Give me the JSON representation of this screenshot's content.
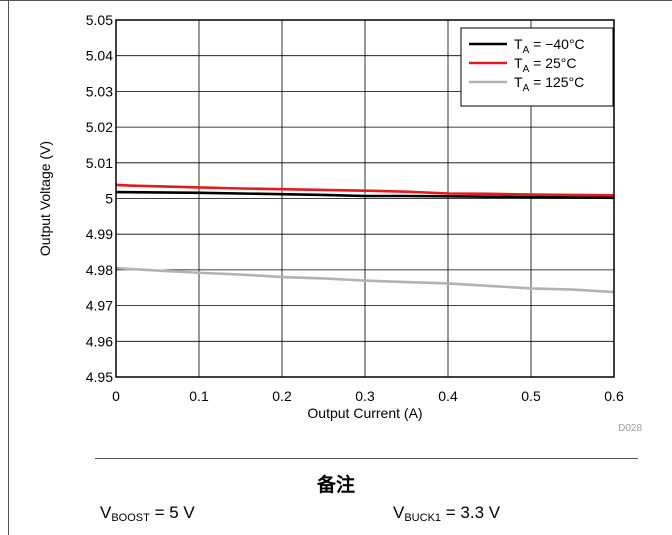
{
  "chart_data": {
    "type": "line",
    "title": "",
    "xlabel": "Output Current (A)",
    "ylabel": "Output Voltage (V)",
    "xlim": [
      0,
      0.6
    ],
    "ylim": [
      4.95,
      5.05
    ],
    "xticks": [
      "0",
      "0.1",
      "0.2",
      "0.3",
      "0.4",
      "0.5",
      "0.6"
    ],
    "xtick_values": [
      0,
      0.1,
      0.2,
      0.3,
      0.4,
      0.5,
      0.6
    ],
    "yticks": [
      "4.95",
      "4.96",
      "4.97",
      "4.98",
      "4.99",
      "5",
      "5.01",
      "5.02",
      "5.03",
      "5.04",
      "5.05"
    ],
    "ytick_values": [
      4.95,
      4.96,
      4.97,
      4.98,
      4.99,
      5.0,
      5.01,
      5.02,
      5.03,
      5.04,
      5.05
    ],
    "grid": true,
    "legend_position": "top-right",
    "figure_code": "D028",
    "series": [
      {
        "name_main": "T",
        "name_sub": "A",
        "name_rest": " = −40°C",
        "color": "#000000",
        "x": [
          0,
          0.05,
          0.1,
          0.15,
          0.2,
          0.25,
          0.3,
          0.35,
          0.4,
          0.45,
          0.5,
          0.55,
          0.6
        ],
        "y": [
          5.0018,
          5.0017,
          5.0016,
          5.0014,
          5.0012,
          5.001,
          5.0007,
          5.0007,
          5.0006,
          5.0005,
          5.0004,
          5.0003,
          5.0002
        ]
      },
      {
        "name_main": "T",
        "name_sub": "A",
        "name_rest": " = 25°C",
        "color": "#e41a1c",
        "x": [
          0,
          0.02,
          0.05,
          0.1,
          0.15,
          0.2,
          0.25,
          0.3,
          0.35,
          0.4,
          0.45,
          0.5,
          0.55,
          0.6
        ],
        "y": [
          5.0038,
          5.0036,
          5.0034,
          5.0031,
          5.0028,
          5.0026,
          5.0024,
          5.0022,
          5.0019,
          5.0014,
          5.0013,
          5.0011,
          5.001,
          5.0009
        ]
      },
      {
        "name_main": "T",
        "name_sub": "A",
        "name_rest": " = 125°C",
        "color": "#b3b3b3",
        "x": [
          0,
          0.05,
          0.1,
          0.15,
          0.2,
          0.25,
          0.3,
          0.35,
          0.4,
          0.45,
          0.5,
          0.55,
          0.6
        ],
        "y": [
          4.9805,
          4.9798,
          4.9792,
          4.9787,
          4.978,
          4.9776,
          4.977,
          4.9766,
          4.9762,
          4.9755,
          4.9748,
          4.9745,
          4.9738
        ]
      }
    ]
  },
  "notes": {
    "title": "备注",
    "conditions": [
      {
        "main": "V",
        "sub": "BOOST",
        "rest": " = 5 V"
      },
      {
        "main": "V",
        "sub": "BUCK1",
        "rest": " = 3.3 V"
      }
    ]
  }
}
